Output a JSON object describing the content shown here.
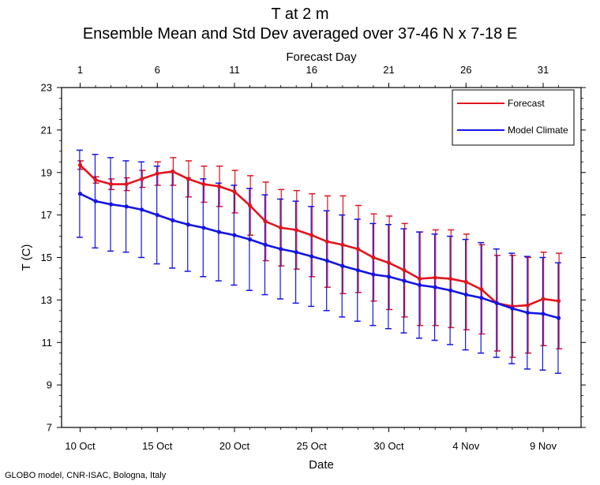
{
  "chart_data": {
    "type": "line",
    "title": "T at 2 m",
    "subtitle": "Ensemble Mean and Std Dev averaged over 37-46 N x 7-18 E",
    "xlabel": "Date",
    "ylabel": "T (C)",
    "top_axis_label": "Forecast Day",
    "ylim": [
      7,
      23
    ],
    "xlim": [
      1,
      32
    ],
    "yticks": [
      7,
      9,
      11,
      13,
      15,
      17,
      19,
      21,
      23
    ],
    "x_bottom_ticks": [
      {
        "day": 1,
        "label": "10 Oct"
      },
      {
        "day": 6,
        "label": "15 Oct"
      },
      {
        "day": 11,
        "label": "20 Oct"
      },
      {
        "day": 16,
        "label": "25 Oct"
      },
      {
        "day": 21,
        "label": "30 Oct"
      },
      {
        "day": 26,
        "label": "4 Nov"
      },
      {
        "day": 31,
        "label": "9 Nov"
      }
    ],
    "x_top_ticks": [
      1,
      6,
      11,
      16,
      21,
      26,
      31
    ],
    "legend_position": "top-right",
    "grid": false,
    "x": [
      1,
      2,
      3,
      4,
      5,
      6,
      7,
      8,
      9,
      10,
      11,
      12,
      13,
      14,
      15,
      16,
      17,
      18,
      19,
      20,
      21,
      22,
      23,
      24,
      25,
      26,
      27,
      28,
      29,
      30,
      31,
      32
    ],
    "series": [
      {
        "name": "Forecast",
        "color": "#e0141e",
        "mean": [
          19.35,
          18.65,
          18.45,
          18.45,
          18.7,
          18.95,
          19.05,
          18.7,
          18.45,
          18.35,
          18.1,
          17.45,
          16.7,
          16.4,
          16.3,
          16.05,
          15.75,
          15.6,
          15.4,
          15.0,
          14.75,
          14.4,
          14.0,
          14.05,
          14.0,
          13.85,
          13.5,
          12.85,
          12.7,
          12.75,
          13.05,
          12.95
        ],
        "std": [
          0.2,
          0.15,
          0.25,
          0.3,
          0.4,
          0.55,
          0.65,
          0.85,
          0.85,
          0.95,
          1.0,
          1.4,
          1.85,
          1.8,
          1.85,
          1.95,
          2.15,
          2.3,
          2.05,
          2.05,
          2.2,
          2.2,
          2.2,
          2.25,
          2.3,
          2.25,
          2.1,
          2.25,
          2.4,
          2.25,
          2.2,
          2.25
        ]
      },
      {
        "name": "Model Climate",
        "color": "#1414e6",
        "mean": [
          18.0,
          17.65,
          17.5,
          17.4,
          17.25,
          17.0,
          16.75,
          16.55,
          16.4,
          16.2,
          16.05,
          15.85,
          15.6,
          15.4,
          15.25,
          15.05,
          14.85,
          14.6,
          14.4,
          14.2,
          14.1,
          13.9,
          13.7,
          13.6,
          13.45,
          13.25,
          13.1,
          12.85,
          12.6,
          12.4,
          12.35,
          12.15
        ],
        "std": [
          2.05,
          2.2,
          2.2,
          2.15,
          2.25,
          2.3,
          2.25,
          2.2,
          2.3,
          2.3,
          2.35,
          2.4,
          2.35,
          2.35,
          2.4,
          2.35,
          2.35,
          2.4,
          2.4,
          2.4,
          2.45,
          2.45,
          2.5,
          2.5,
          2.55,
          2.6,
          2.6,
          2.55,
          2.6,
          2.65,
          2.65,
          2.6
        ]
      }
    ]
  },
  "credit": "GLOBO model, CNR-ISAC, Bologna, Italy"
}
